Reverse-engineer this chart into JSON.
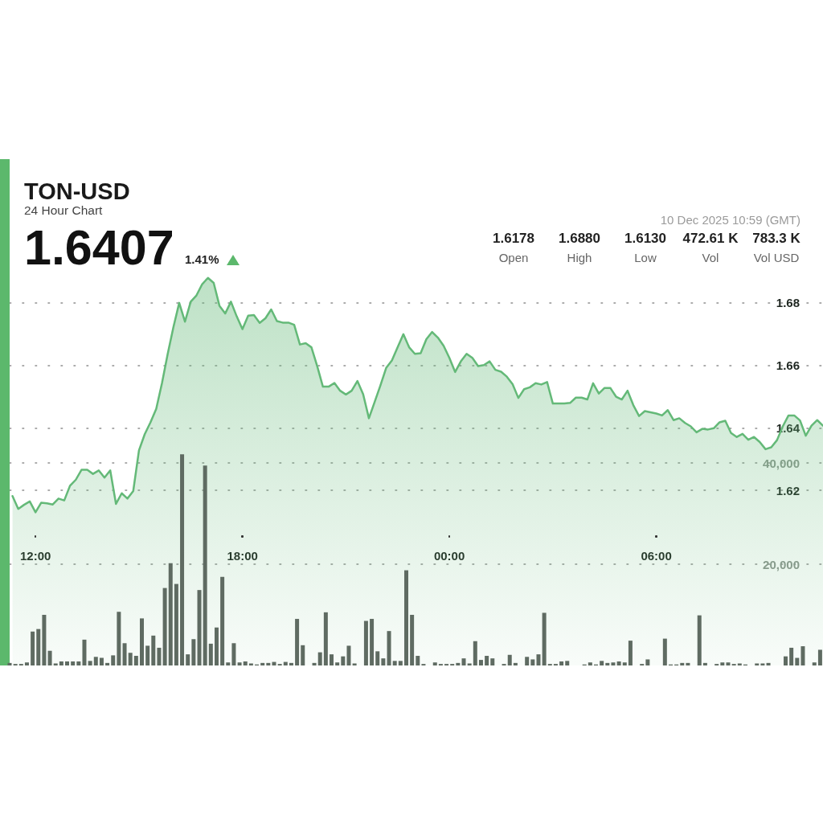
{
  "chart_data": {
    "type": "area",
    "title": "TON-USD",
    "subtitle": "24 Hour Chart",
    "annotations": [
      "1.6407",
      "1.41%",
      "1.6178",
      "Open",
      "1.6880",
      "High",
      "1.6130",
      "Low",
      "472.61 K",
      "Vol",
      "783.3 K",
      "Vol USD",
      "10 Dec 2025 10:59 (GMT)"
    ],
    "xlim": [
      "2025-12-09T11:15",
      "2025-12-10T10:50"
    ],
    "xticks": [
      {
        "value": "2025-12-09T12:00",
        "label": "12:00"
      },
      {
        "value": "2025-12-09T18:00",
        "label": "18:00"
      },
      {
        "value": "2025-12-10T00:00",
        "label": "00:00"
      },
      {
        "value": "2025-12-10T06:00",
        "label": "06:00"
      }
    ],
    "ylim": [
      1.564,
      1.726
    ],
    "yticks": [
      1.62,
      1.64,
      1.66,
      1.68
    ],
    "y2lim": [
      0,
      100000
    ],
    "y2ticks": [
      {
        "value": 20000,
        "label": "20,000"
      },
      {
        "value": 40000,
        "label": "40,000"
      }
    ],
    "grid": "y",
    "series": [
      {
        "color": "#64b978",
        "x": [
          "2025-12-09T11:20",
          "2025-12-09T11:30",
          "2025-12-09T11:40",
          "2025-12-09T11:50",
          "2025-12-09T12:00",
          "2025-12-09T12:10",
          "2025-12-09T12:20",
          "2025-12-09T12:30",
          "2025-12-09T12:40",
          "2025-12-09T12:50",
          "2025-12-09T13:00",
          "2025-12-09T13:10",
          "2025-12-09T13:20",
          "2025-12-09T13:30",
          "2025-12-09T13:40",
          "2025-12-09T13:50",
          "2025-12-09T14:00",
          "2025-12-09T14:10",
          "2025-12-09T14:20",
          "2025-12-09T14:30",
          "2025-12-09T14:40",
          "2025-12-09T14:50",
          "2025-12-09T15:00",
          "2025-12-09T15:10",
          "2025-12-09T15:20",
          "2025-12-09T15:30",
          "2025-12-09T15:40",
          "2025-12-09T15:50",
          "2025-12-09T16:00",
          "2025-12-09T16:10",
          "2025-12-09T16:20",
          "2025-12-09T16:30",
          "2025-12-09T16:40",
          "2025-12-09T16:50",
          "2025-12-09T17:00",
          "2025-12-09T17:10",
          "2025-12-09T17:20",
          "2025-12-09T17:30",
          "2025-12-09T17:40",
          "2025-12-09T17:50",
          "2025-12-09T18:00",
          "2025-12-09T18:10",
          "2025-12-09T18:20",
          "2025-12-09T18:30",
          "2025-12-09T18:40",
          "2025-12-09T18:50",
          "2025-12-09T19:00",
          "2025-12-09T19:10",
          "2025-12-09T19:20",
          "2025-12-09T19:30",
          "2025-12-09T19:40",
          "2025-12-09T19:50",
          "2025-12-09T20:00",
          "2025-12-09T20:10",
          "2025-12-09T20:20",
          "2025-12-09T20:30",
          "2025-12-09T20:40",
          "2025-12-09T20:50",
          "2025-12-09T21:00",
          "2025-12-09T21:10",
          "2025-12-09T21:20",
          "2025-12-09T21:30",
          "2025-12-09T21:40",
          "2025-12-09T21:50",
          "2025-12-09T22:00",
          "2025-12-09T22:10",
          "2025-12-09T22:20",
          "2025-12-09T22:30",
          "2025-12-09T22:40",
          "2025-12-09T22:50",
          "2025-12-09T23:00",
          "2025-12-09T23:10",
          "2025-12-09T23:20",
          "2025-12-09T23:30",
          "2025-12-09T23:40",
          "2025-12-09T23:50",
          "2025-12-10T00:00",
          "2025-12-10T00:10",
          "2025-12-10T00:20",
          "2025-12-10T00:30",
          "2025-12-10T00:40",
          "2025-12-10T00:50",
          "2025-12-10T01:00",
          "2025-12-10T01:10",
          "2025-12-10T01:20",
          "2025-12-10T01:30",
          "2025-12-10T01:40",
          "2025-12-10T01:50",
          "2025-12-10T02:00",
          "2025-12-10T02:10",
          "2025-12-10T02:20",
          "2025-12-10T02:30",
          "2025-12-10T02:40",
          "2025-12-10T02:50",
          "2025-12-10T03:00",
          "2025-12-10T03:10",
          "2025-12-10T03:20",
          "2025-12-10T03:30",
          "2025-12-10T03:40",
          "2025-12-10T03:50",
          "2025-12-10T04:00",
          "2025-12-10T04:10",
          "2025-12-10T04:20",
          "2025-12-10T04:30",
          "2025-12-10T04:40",
          "2025-12-10T04:50",
          "2025-12-10T05:00",
          "2025-12-10T05:10",
          "2025-12-10T05:20",
          "2025-12-10T05:30",
          "2025-12-10T05:40",
          "2025-12-10T05:50",
          "2025-12-10T06:00",
          "2025-12-10T06:10",
          "2025-12-10T06:20",
          "2025-12-10T06:30",
          "2025-12-10T06:40",
          "2025-12-10T06:50",
          "2025-12-10T07:00",
          "2025-12-10T07:10",
          "2025-12-10T07:20",
          "2025-12-10T07:30",
          "2025-12-10T07:40",
          "2025-12-10T07:50",
          "2025-12-10T08:00",
          "2025-12-10T08:10",
          "2025-12-10T08:20",
          "2025-12-10T08:30",
          "2025-12-10T08:40",
          "2025-12-10T08:50",
          "2025-12-10T09:00",
          "2025-12-10T09:10",
          "2025-12-10T09:20",
          "2025-12-10T09:30",
          "2025-12-10T09:40",
          "2025-12-10T09:50",
          "2025-12-10T10:00",
          "2025-12-10T10:10",
          "2025-12-10T10:20",
          "2025-12-10T10:30",
          "2025-12-10T10:40",
          "2025-12-10T10:50"
        ],
        "values": [
          1.6182,
          1.6141,
          1.6154,
          1.6165,
          1.613,
          1.6161,
          1.6159,
          1.6155,
          1.6174,
          1.6168,
          1.6215,
          1.6234,
          1.6266,
          1.6266,
          1.6253,
          1.6264,
          1.6241,
          1.6264,
          1.6157,
          1.6191,
          1.6174,
          1.6198,
          1.6328,
          1.638,
          1.6418,
          1.6461,
          1.6543,
          1.6637,
          1.6723,
          1.68,
          1.674,
          1.6804,
          1.6824,
          1.686,
          1.688,
          1.6864,
          1.6791,
          1.6766,
          1.6804,
          1.6757,
          1.6716,
          1.6759,
          1.6761,
          1.6736,
          1.6751,
          1.6779,
          1.6742,
          1.6737,
          1.6737,
          1.673,
          1.6667,
          1.6671,
          1.6658,
          1.6598,
          1.6532,
          1.6532,
          1.6544,
          1.6519,
          1.6507,
          1.6519,
          1.655,
          1.6508,
          1.6431,
          1.6483,
          1.6536,
          1.6592,
          1.6616,
          1.6658,
          1.67,
          1.6658,
          1.6637,
          1.6639,
          1.6684,
          1.6707,
          1.6689,
          1.6663,
          1.6624,
          1.6579,
          1.6613,
          1.6637,
          1.6624,
          1.6598,
          1.6601,
          1.6613,
          1.6586,
          1.658,
          1.6564,
          1.654,
          1.6496,
          1.6524,
          1.653,
          1.6543,
          1.6539,
          1.6547,
          1.6478,
          1.6478,
          1.6478,
          1.648,
          1.6497,
          1.6497,
          1.6491,
          1.6543,
          1.651,
          1.6528,
          1.6528,
          1.65,
          1.6491,
          1.6519,
          1.6473,
          1.6438,
          1.6454,
          1.645,
          1.6446,
          1.644,
          1.6457,
          1.6425,
          1.6431,
          1.6416,
          1.6405,
          1.6386,
          1.6397,
          1.6395,
          1.6399,
          1.6418,
          1.6423,
          1.6384,
          1.6371,
          1.6381,
          1.6362,
          1.6371,
          1.6355,
          1.6332,
          1.6338,
          1.6361,
          1.6405,
          1.644,
          1.644,
          1.6424,
          1.6375,
          1.6407,
          1.6425,
          1.6407
        ]
      },
      {
        "type": "bar",
        "axis": "y2",
        "color": "#5f6b62",
        "x": [
          "2025-12-09T11:15",
          "2025-12-09T11:25",
          "2025-12-09T11:35",
          "2025-12-09T11:45",
          "2025-12-09T11:55",
          "2025-12-09T12:05",
          "2025-12-09T12:15",
          "2025-12-09T12:25",
          "2025-12-09T12:35",
          "2025-12-09T12:45",
          "2025-12-09T12:55",
          "2025-12-09T13:05",
          "2025-12-09T13:15",
          "2025-12-09T13:25",
          "2025-12-09T13:35",
          "2025-12-09T13:45",
          "2025-12-09T13:55",
          "2025-12-09T14:05",
          "2025-12-09T14:15",
          "2025-12-09T14:25",
          "2025-12-09T14:35",
          "2025-12-09T14:45",
          "2025-12-09T14:55",
          "2025-12-09T15:05",
          "2025-12-09T15:15",
          "2025-12-09T15:25",
          "2025-12-09T15:35",
          "2025-12-09T15:45",
          "2025-12-09T15:55",
          "2025-12-09T16:05",
          "2025-12-09T16:15",
          "2025-12-09T16:25",
          "2025-12-09T16:35",
          "2025-12-09T16:45",
          "2025-12-09T16:55",
          "2025-12-09T17:05",
          "2025-12-09T17:15",
          "2025-12-09T17:25",
          "2025-12-09T17:35",
          "2025-12-09T17:45",
          "2025-12-09T17:55",
          "2025-12-09T18:05",
          "2025-12-09T18:15",
          "2025-12-09T18:25",
          "2025-12-09T18:35",
          "2025-12-09T18:45",
          "2025-12-09T18:55",
          "2025-12-09T19:05",
          "2025-12-09T19:15",
          "2025-12-09T19:25",
          "2025-12-09T19:35",
          "2025-12-09T19:45",
          "2025-12-09T19:55",
          "2025-12-09T20:05",
          "2025-12-09T20:15",
          "2025-12-09T20:25",
          "2025-12-09T20:35",
          "2025-12-09T20:45",
          "2025-12-09T20:55",
          "2025-12-09T21:05",
          "2025-12-09T21:15",
          "2025-12-09T21:25",
          "2025-12-09T21:35",
          "2025-12-09T21:45",
          "2025-12-09T21:55",
          "2025-12-09T22:05",
          "2025-12-09T22:15",
          "2025-12-09T22:25",
          "2025-12-09T22:35",
          "2025-12-09T22:45",
          "2025-12-09T22:55",
          "2025-12-09T23:05",
          "2025-12-09T23:15",
          "2025-12-09T23:25",
          "2025-12-09T23:35",
          "2025-12-09T23:45",
          "2025-12-09T23:55",
          "2025-12-10T00:05",
          "2025-12-10T00:15",
          "2025-12-10T00:25",
          "2025-12-10T00:35",
          "2025-12-10T00:45",
          "2025-12-10T00:55",
          "2025-12-10T01:05",
          "2025-12-10T01:15",
          "2025-12-10T01:25",
          "2025-12-10T01:35",
          "2025-12-10T01:45",
          "2025-12-10T01:55",
          "2025-12-10T02:05",
          "2025-12-10T02:15",
          "2025-12-10T02:25",
          "2025-12-10T02:35",
          "2025-12-10T02:45",
          "2025-12-10T02:55",
          "2025-12-10T03:05",
          "2025-12-10T03:15",
          "2025-12-10T03:25",
          "2025-12-10T03:35",
          "2025-12-10T03:45",
          "2025-12-10T03:55",
          "2025-12-10T04:05",
          "2025-12-10T04:15",
          "2025-12-10T04:25",
          "2025-12-10T04:35",
          "2025-12-10T04:45",
          "2025-12-10T04:55",
          "2025-12-10T05:05",
          "2025-12-10T05:15",
          "2025-12-10T05:25",
          "2025-12-10T05:35",
          "2025-12-10T05:45",
          "2025-12-10T05:55",
          "2025-12-10T06:05",
          "2025-12-10T06:15",
          "2025-12-10T06:25",
          "2025-12-10T06:35",
          "2025-12-10T06:45",
          "2025-12-10T06:55",
          "2025-12-10T07:05",
          "2025-12-10T07:15",
          "2025-12-10T07:25",
          "2025-12-10T07:35",
          "2025-12-10T07:45",
          "2025-12-10T07:55",
          "2025-12-10T08:05",
          "2025-12-10T08:15",
          "2025-12-10T08:25",
          "2025-12-10T08:35",
          "2025-12-10T08:45",
          "2025-12-10T08:55",
          "2025-12-10T09:05",
          "2025-12-10T09:15",
          "2025-12-10T09:25",
          "2025-12-10T09:35",
          "2025-12-10T09:45",
          "2025-12-10T09:55",
          "2025-12-10T10:05",
          "2025-12-10T10:15",
          "2025-12-10T10:25",
          "2025-12-10T10:35",
          "2025-12-10T10:45"
        ],
        "values": [
          500,
          300,
          300,
          600,
          6700,
          7200,
          10000,
          2900,
          400,
          800,
          800,
          800,
          800,
          5100,
          900,
          1700,
          1500,
          500,
          2000,
          10600,
          4400,
          2500,
          1900,
          9300,
          3900,
          5900,
          3500,
          15300,
          20200,
          16100,
          41700,
          2200,
          5200,
          14900,
          39500,
          4300,
          7500,
          17500,
          600,
          4400,
          600,
          800,
          400,
          200,
          500,
          500,
          700,
          300,
          700,
          500,
          9200,
          4000,
          null,
          500,
          2600,
          10500,
          2200,
          600,
          1800,
          3900,
          400,
          null,
          8800,
          9200,
          2800,
          1400,
          6800,
          900,
          900,
          18800,
          10000,
          1900,
          300,
          null,
          600,
          300,
          300,
          300,
          500,
          1400,
          400,
          4800,
          1100,
          1900,
          1400,
          null,
          300,
          2100,
          500,
          null,
          1700,
          1200,
          2200,
          10400,
          300,
          300,
          800,
          900,
          null,
          null,
          200,
          600,
          200,
          900,
          500,
          600,
          800,
          600,
          4900,
          null,
          300,
          1200,
          null,
          null,
          5300,
          200,
          200,
          500,
          500,
          null,
          9900,
          500,
          null,
          300,
          600,
          600,
          300,
          400,
          200,
          null,
          400,
          400,
          500,
          null,
          null,
          1800,
          3500,
          1500,
          3800,
          null,
          600,
          3100
        ]
      }
    ]
  }
}
